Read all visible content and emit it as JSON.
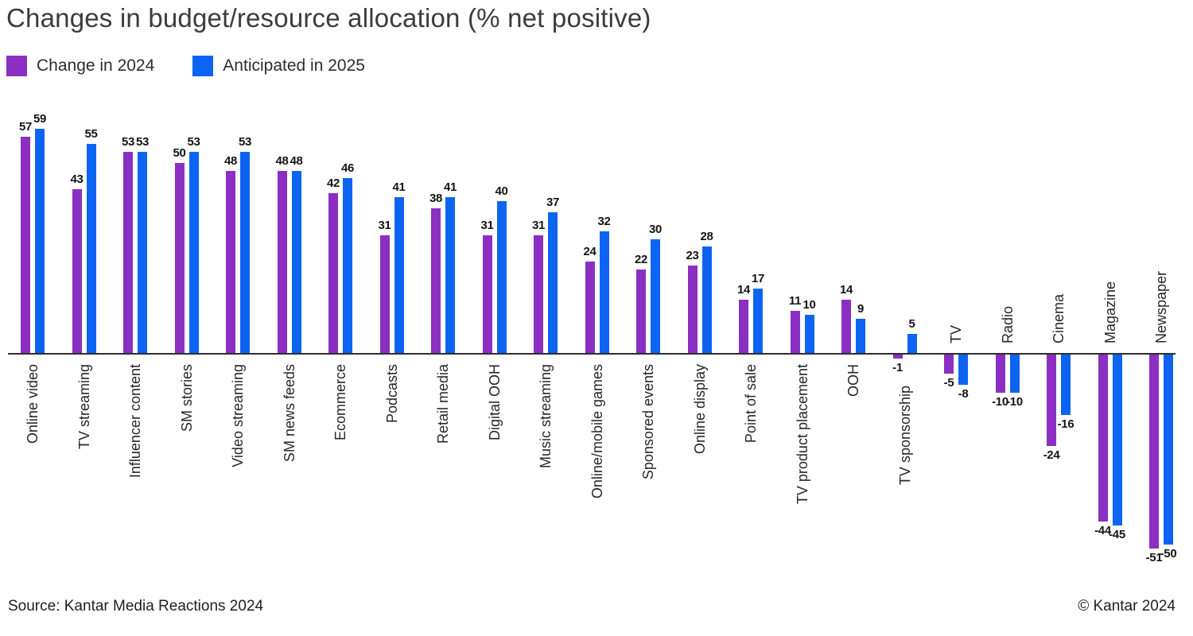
{
  "title": "Changes in budget/resource allocation (% net positive)",
  "legend": {
    "items": [
      {
        "label": "Change in 2024",
        "color": "#8A2FC2"
      },
      {
        "label": "Anticipated in 2025",
        "color": "#0D64F2"
      }
    ]
  },
  "footer": {
    "source": "Source: Kantar Media Reactions 2024",
    "copyright": "© Kantar 2024"
  },
  "colors": {
    "purple": "#8A2FC2",
    "blue": "#0D64F2",
    "axis": "#2e2e2e",
    "text": "#262626"
  },
  "chart_data": {
    "type": "bar",
    "title": "Changes in budget/resource allocation (% net positive)",
    "xlabel": "",
    "ylabel": "",
    "ylim": [
      -60,
      65
    ],
    "grid": false,
    "legend_position": "top-left",
    "value_labels": true,
    "categories": [
      "Online video",
      "TV streaming",
      "Influencer content",
      "SM stories",
      "Video streaming",
      "SM news feeds",
      "Ecommerce",
      "Podcasts",
      "Retail media",
      "Digital OOH",
      "Music streaming",
      "Online/mobile games",
      "Sponsored events",
      "Online display",
      "Point of sale",
      "TV product placement",
      "OOH",
      "TV sponsorship",
      "TV",
      "Radio",
      "Cinema",
      "Magazine",
      "Newspaper"
    ],
    "series": [
      {
        "name": "Change in 2024",
        "color": "#8A2FC2",
        "values": [
          57,
          43,
          53,
          50,
          48,
          48,
          42,
          31,
          38,
          31,
          31,
          24,
          22,
          23,
          14,
          11,
          14,
          -1,
          -5,
          -10,
          -24,
          -44,
          -51
        ]
      },
      {
        "name": "Anticipated in 2025",
        "color": "#0D64F2",
        "values": [
          59,
          55,
          53,
          53,
          53,
          48,
          46,
          41,
          41,
          40,
          37,
          32,
          30,
          28,
          17,
          10,
          9,
          5,
          -8,
          -10,
          -16,
          -45,
          -50
        ]
      }
    ]
  }
}
